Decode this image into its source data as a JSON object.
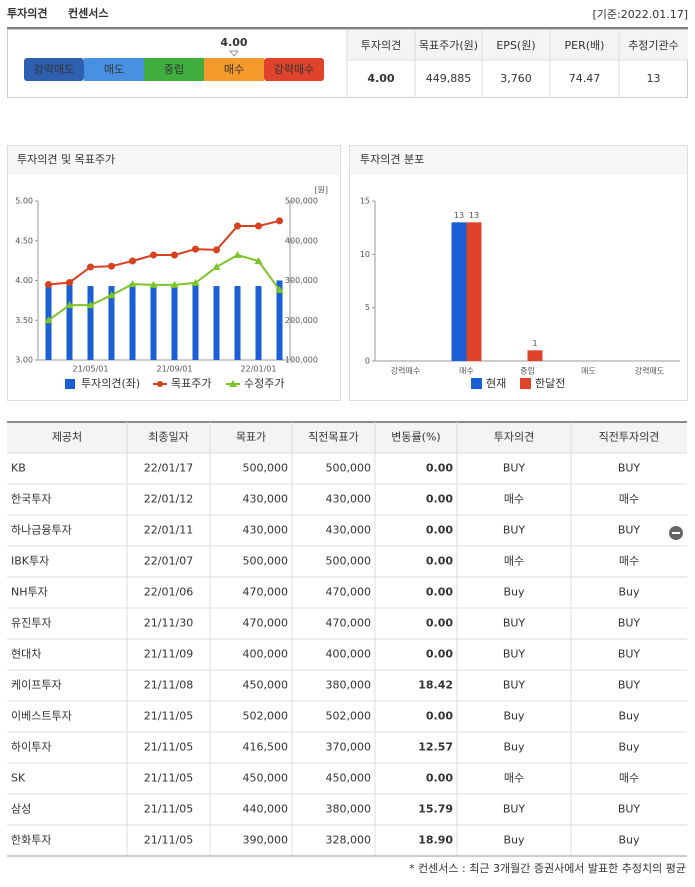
{
  "header": {
    "title": "투자의견",
    "subtitle": "컨센서스",
    "date": "[기준:2022.01.17]"
  },
  "gauge": {
    "labels": [
      "강력매도",
      "매도",
      "중립",
      "매수",
      "강력매수"
    ],
    "colors": [
      "#2e5fb0",
      "#4a90e2",
      "#3fae3f",
      "#f39a2b",
      "#e0432b"
    ],
    "value": 4,
    "value_label": "4.00"
  },
  "summary": {
    "headers": [
      "투자의견",
      "목표주가(원)",
      "EPS(원)",
      "PER(배)",
      "추정기관수"
    ],
    "values": [
      "4.00",
      "449,885",
      "3,760",
      "74.47",
      "13"
    ]
  },
  "chart_data": [
    {
      "type": "combo",
      "title": "투자의견 및 목표주가",
      "categories": [
        null,
        null,
        "21/05/01",
        null,
        null,
        null,
        "21/09/01",
        null,
        null,
        null,
        "22/01/01",
        null
      ],
      "ylim": [
        3,
        5
      ],
      "yticks": [
        {
          "value": 3,
          "label": "3.00"
        },
        {
          "value": 3.5,
          "label": "3.50"
        },
        {
          "value": 4,
          "label": "4.00"
        },
        {
          "value": 4.5,
          "label": "4.50"
        },
        {
          "value": 5,
          "label": "5.00"
        }
      ],
      "y2lim": [
        100000,
        500000
      ],
      "y2ticks": [
        {
          "value": 100000,
          "label": "100,000"
        },
        {
          "value": 200000,
          "label": "200,000"
        },
        {
          "value": 300000,
          "label": "300,000"
        },
        {
          "value": 400000,
          "label": "400,000"
        },
        {
          "value": 500000,
          "label": "500,000"
        }
      ],
      "y2_unit": "[원]",
      "series": [
        {
          "name": "투자의견(좌)",
          "type": "bar",
          "color": "#1a5fd6",
          "values": [
            3.96,
            4.0,
            3.93,
            3.93,
            3.96,
            3.93,
            3.93,
            3.96,
            3.93,
            3.93,
            3.93,
            4.0
          ]
        },
        {
          "name": "목표주가",
          "type": "line",
          "axis": "y2",
          "marker": "circle",
          "color": "#d9401f",
          "values": [
            290000,
            295000,
            334000,
            336000,
            349000,
            364000,
            364000,
            379000,
            377000,
            437000,
            437000,
            450000
          ]
        },
        {
          "name": "수정주가",
          "type": "line",
          "axis": "y2",
          "marker": "triangle",
          "color": "#7cc42a",
          "values": [
            200000,
            238000,
            238000,
            263000,
            291000,
            289000,
            289000,
            294000,
            334000,
            364000,
            349000,
            276000
          ]
        }
      ]
    },
    {
      "type": "bar",
      "title": "투자의견 분포",
      "categories": [
        "강력매수",
        "매수",
        "중립",
        "매도",
        "강력매도"
      ],
      "ylim": [
        0,
        15
      ],
      "yticks": [
        0,
        5,
        10,
        15
      ],
      "series": [
        {
          "name": "현재",
          "color": "#1a5fd6",
          "values": [
            0,
            13,
            0,
            0,
            0
          ]
        },
        {
          "name": "한달전",
          "color": "#e0432b",
          "values": [
            0,
            13,
            1,
            0,
            0
          ]
        }
      ]
    }
  ],
  "table": {
    "headers": [
      "제공처",
      "최종일자",
      "목표가",
      "직전목표가",
      "변동률(%)",
      "투자의견",
      "직전투자의견"
    ],
    "rows": [
      [
        "KB",
        "22/01/17",
        "500,000",
        "500,000",
        "0.00",
        "BUY",
        "BUY"
      ],
      [
        "한국투자",
        "22/01/12",
        "430,000",
        "430,000",
        "0.00",
        "매수",
        "매수"
      ],
      [
        "하나금융투자",
        "22/01/11",
        "430,000",
        "430,000",
        "0.00",
        "BUY",
        "BUY"
      ],
      [
        "IBK투자",
        "22/01/07",
        "500,000",
        "500,000",
        "0.00",
        "매수",
        "매수"
      ],
      [
        "NH투자",
        "22/01/06",
        "470,000",
        "470,000",
        "0.00",
        "Buy",
        "Buy"
      ],
      [
        "유진투자",
        "21/11/30",
        "470,000",
        "470,000",
        "0.00",
        "BUY",
        "BUY"
      ],
      [
        "현대차",
        "21/11/09",
        "400,000",
        "400,000",
        "0.00",
        "BUY",
        "BUY"
      ],
      [
        "케이프투자",
        "21/11/08",
        "450,000",
        "380,000",
        "18.42",
        "BUY",
        "BUY"
      ],
      [
        "이베스트투자",
        "21/11/05",
        "502,000",
        "502,000",
        "0.00",
        "Buy",
        "Buy"
      ],
      [
        "하이투자",
        "21/11/05",
        "416,500",
        "370,000",
        "12.57",
        "Buy",
        "Buy"
      ],
      [
        "SK",
        "21/11/05",
        "450,000",
        "450,000",
        "0.00",
        "매수",
        "매수"
      ],
      [
        "삼성",
        "21/11/05",
        "440,000",
        "380,000",
        "15.79",
        "BUY",
        "BUY"
      ],
      [
        "한화투자",
        "21/11/05",
        "390,000",
        "328,000",
        "18.90",
        "Buy",
        "Buy"
      ]
    ]
  },
  "footnote": "* 컨센서스 : 최근 3개월간 증권사에서 발표한 추정치의 평균"
}
